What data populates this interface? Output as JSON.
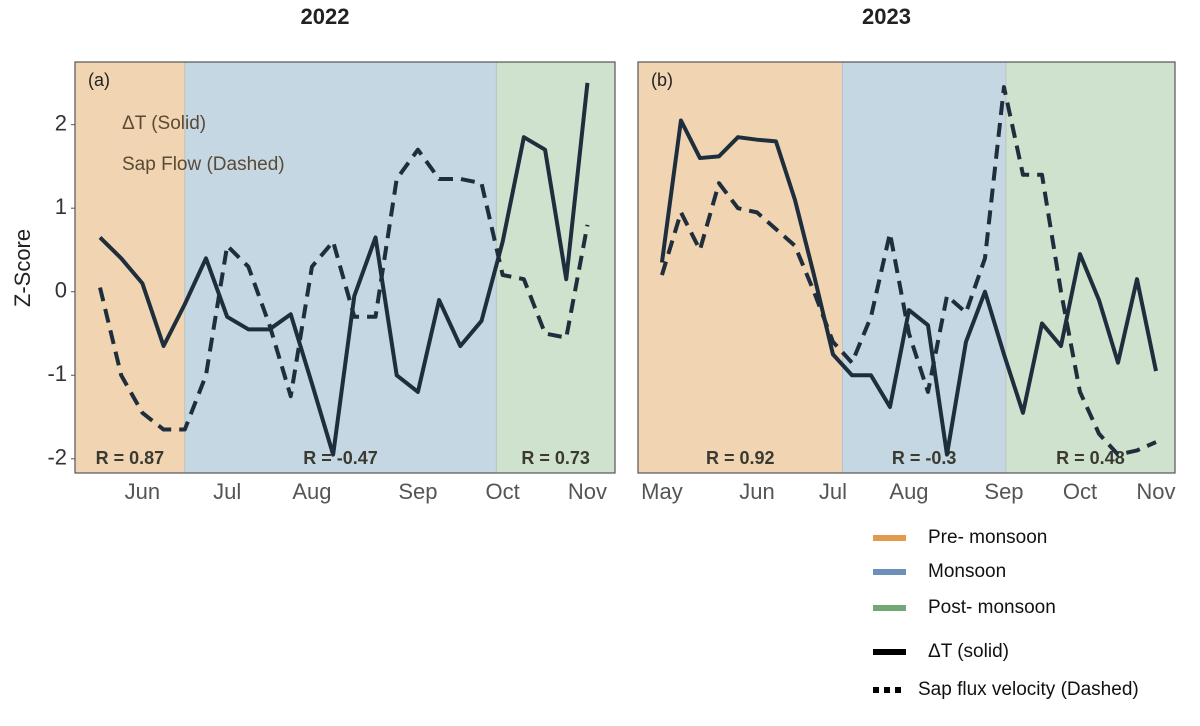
{
  "chart_data": [
    {
      "type": "line",
      "title": "2022",
      "panel_label": "(a)",
      "y_label": "Z-Score",
      "categories": [
        null,
        null,
        "Jun",
        null,
        null,
        null,
        "Jul",
        null,
        null,
        null,
        "Aug",
        null,
        null,
        null,
        null,
        "Sep",
        null,
        null,
        null,
        "Oct",
        null,
        null,
        null,
        "Nov"
      ],
      "xlim": [
        -1.18,
        24.3
      ],
      "ylim": [
        -2.17,
        2.75
      ],
      "yticks": [
        -2,
        -1,
        0,
        1,
        2
      ],
      "breaks": [
        4,
        18.7
      ],
      "regions": [
        {
          "color": "#f1d5b2",
          "annotation": "R = 0.87"
        },
        {
          "color": "#c6d7e4",
          "annotation": "R = -0.47"
        },
        {
          "color": "#cfe2cd",
          "annotation": "R = 0.73"
        }
      ],
      "series": [
        {
          "name": "ΔT (Solid)",
          "color": "#1e2e3c",
          "style": "solid",
          "values": [
            0.65,
            0.4,
            0.1,
            -0.65,
            -0.15,
            0.4,
            -0.3,
            -0.45,
            -0.45,
            -0.27,
            -1.1,
            -1.95,
            -0.05,
            0.65,
            -1.0,
            -1.2,
            -0.1,
            -0.65,
            -0.35,
            0.6,
            1.85,
            1.7,
            0.15,
            2.5
          ]
        },
        {
          "name": "Sap Flow (Dashed)",
          "color": "#1e2e3c",
          "style": "dashed",
          "values": [
            0.05,
            -1.0,
            -1.45,
            -1.65,
            -1.65,
            -1.0,
            0.55,
            0.3,
            -0.4,
            -1.25,
            0.3,
            0.6,
            -0.3,
            -0.3,
            1.35,
            1.7,
            1.35,
            1.35,
            1.3,
            0.2,
            0.15,
            -0.5,
            -0.55,
            0.8
          ]
        }
      ]
    },
    {
      "type": "line",
      "title": "2023",
      "panel_label": "(b)",
      "categories": [
        "May",
        null,
        null,
        null,
        null,
        "Jun",
        null,
        null,
        null,
        "Jul",
        null,
        null,
        null,
        "Aug",
        null,
        null,
        null,
        null,
        "Sep",
        null,
        null,
        null,
        "Oct",
        null,
        null,
        null,
        "Nov"
      ],
      "xlim": [
        -1.26,
        27.0
      ],
      "ylim": [
        -2.17,
        2.75
      ],
      "breaks": [
        9.5,
        18.1
      ],
      "regions": [
        {
          "color": "#f1d5b2",
          "annotation": "R = 0.92"
        },
        {
          "color": "#c6d7e4",
          "annotation": "R = -0.3"
        },
        {
          "color": "#cfe2cd",
          "annotation": "R = 0.48"
        }
      ],
      "series": [
        {
          "color": "#1e2e3c",
          "style": "solid",
          "values": [
            0.35,
            2.05,
            1.6,
            1.62,
            1.85,
            1.82,
            1.8,
            1.1,
            0.2,
            -0.75,
            -1.0,
            -1.0,
            -1.38,
            -0.22,
            -0.4,
            -1.95,
            -0.6,
            0.0,
            -0.75,
            -1.45,
            -0.38,
            -0.65,
            0.45,
            -0.1,
            -0.85,
            0.15,
            -0.95
          ]
        },
        {
          "color": "#1e2e3c",
          "style": "dashed",
          "values": [
            0.2,
            0.95,
            0.5,
            1.3,
            1.0,
            0.95,
            0.75,
            0.55,
            0.0,
            -0.6,
            -0.85,
            -0.3,
            0.7,
            -0.5,
            -1.2,
            -0.05,
            -0.25,
            0.4,
            2.45,
            1.4,
            1.4,
            0.0,
            -1.2,
            -1.7,
            -1.95,
            -1.9,
            -1.8
          ]
        }
      ]
    }
  ],
  "legend": [
    {
      "label": "Pre- monsoon",
      "color": "#e09c4c",
      "style": "band"
    },
    {
      "label": "Monsoon",
      "color": "#6c90b8",
      "style": "band"
    },
    {
      "label": "Post- monsoon",
      "color": "#72a872",
      "style": "band"
    },
    {
      "label": "ΔT (solid)",
      "color": "#000000",
      "style": "solid"
    },
    {
      "label": "Sap flux velocity (Dashed)",
      "color": "#000000",
      "style": "dashed"
    }
  ]
}
